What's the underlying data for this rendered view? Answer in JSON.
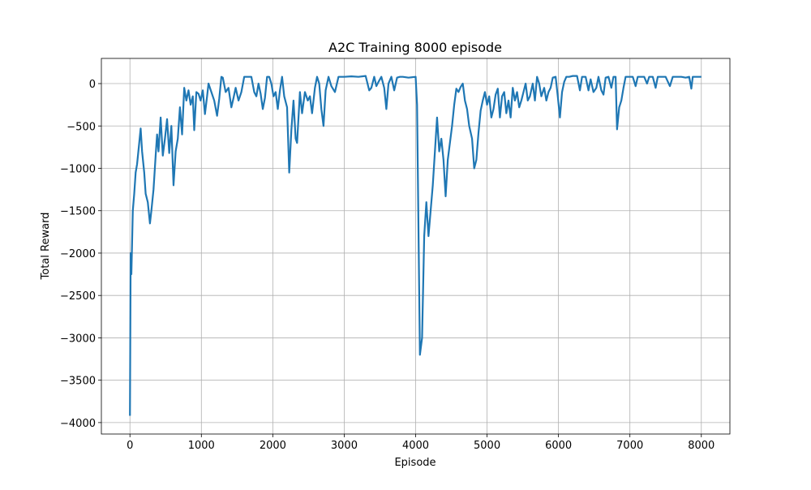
{
  "chart_data": {
    "type": "line",
    "title": "A2C Training 8000 episode",
    "x_label": "Episode",
    "y_label": "Total Reward",
    "x": [
      0,
      10,
      20,
      40,
      60,
      80,
      100,
      130,
      150,
      170,
      200,
      220,
      250,
      280,
      300,
      330,
      360,
      380,
      400,
      430,
      460,
      490,
      520,
      550,
      580,
      610,
      640,
      670,
      700,
      730,
      760,
      790,
      820,
      850,
      880,
      900,
      930,
      960,
      990,
      1020,
      1050,
      1080,
      1100,
      1140,
      1180,
      1220,
      1250,
      1280,
      1300,
      1340,
      1380,
      1420,
      1450,
      1480,
      1520,
      1560,
      1600,
      1640,
      1700,
      1740,
      1770,
      1800,
      1830,
      1860,
      1890,
      1920,
      1950,
      1980,
      2010,
      2040,
      2070,
      2100,
      2130,
      2160,
      2200,
      2230,
      2260,
      2290,
      2320,
      2340,
      2380,
      2410,
      2450,
      2490,
      2520,
      2550,
      2590,
      2620,
      2650,
      2680,
      2710,
      2740,
      2780,
      2820,
      2870,
      2920,
      3000,
      3100,
      3200,
      3300,
      3350,
      3380,
      3420,
      3450,
      3480,
      3520,
      3560,
      3590,
      3620,
      3660,
      3700,
      3740,
      3780,
      3820,
      3900,
      4000,
      4020,
      4060,
      4090,
      4120,
      4150,
      4180,
      4210,
      4240,
      4270,
      4300,
      4330,
      4360,
      4390,
      4420,
      4450,
      4480,
      4510,
      4540,
      4570,
      4600,
      4630,
      4660,
      4690,
      4720,
      4750,
      4790,
      4820,
      4850,
      4880,
      4910,
      4940,
      4970,
      5000,
      5030,
      5060,
      5090,
      5120,
      5150,
      5180,
      5210,
      5240,
      5270,
      5300,
      5330,
      5360,
      5390,
      5420,
      5450,
      5480,
      5510,
      5540,
      5570,
      5600,
      5640,
      5670,
      5700,
      5730,
      5760,
      5800,
      5830,
      5860,
      5890,
      5920,
      5960,
      5990,
      6020,
      6050,
      6080,
      6110,
      6150,
      6200,
      6260,
      6300,
      6330,
      6380,
      6420,
      6450,
      6490,
      6530,
      6560,
      6600,
      6630,
      6660,
      6700,
      6740,
      6770,
      6800,
      6820,
      6850,
      6880,
      6910,
      6940,
      6980,
      7040,
      7080,
      7110,
      7160,
      7200,
      7240,
      7270,
      7320,
      7360,
      7390,
      7450,
      7500,
      7560,
      7600,
      7660,
      7720,
      7780,
      7830,
      7860,
      7880,
      8000
    ],
    "values": [
      -3920,
      -2000,
      -2250,
      -1500,
      -1300,
      -1050,
      -950,
      -700,
      -530,
      -800,
      -1050,
      -1300,
      -1400,
      -1650,
      -1500,
      -1250,
      -850,
      -600,
      -800,
      -400,
      -850,
      -650,
      -420,
      -820,
      -500,
      -1200,
      -800,
      -650,
      -280,
      -600,
      -50,
      -200,
      -80,
      -250,
      -150,
      -550,
      -100,
      -120,
      -200,
      -80,
      -360,
      -150,
      0,
      -100,
      -200,
      -380,
      -180,
      80,
      70,
      -100,
      -50,
      -280,
      -170,
      -50,
      -200,
      -100,
      80,
      80,
      80,
      -100,
      -150,
      0,
      -120,
      -300,
      -170,
      80,
      80,
      0,
      -150,
      -100,
      -300,
      -80,
      80,
      -150,
      -280,
      -1050,
      -550,
      -200,
      -650,
      -700,
      -100,
      -350,
      -100,
      -200,
      -150,
      -350,
      -50,
      80,
      0,
      -300,
      -500,
      -80,
      80,
      -30,
      -100,
      80,
      80,
      85,
      80,
      90,
      -80,
      -50,
      80,
      -30,
      20,
      80,
      -50,
      -300,
      0,
      80,
      -80,
      70,
      80,
      80,
      70,
      80,
      -250,
      -3200,
      -3000,
      -1800,
      -1400,
      -1800,
      -1500,
      -1200,
      -800,
      -400,
      -800,
      -650,
      -900,
      -1330,
      -900,
      -700,
      -500,
      -250,
      -60,
      -100,
      -40,
      0,
      -200,
      -300,
      -500,
      -650,
      -1000,
      -900,
      -580,
      -320,
      -200,
      -100,
      -250,
      -150,
      -400,
      -300,
      -130,
      -60,
      -400,
      -150,
      -100,
      -350,
      -200,
      -400,
      -50,
      -200,
      -100,
      -280,
      -200,
      -100,
      0,
      -200,
      -150,
      0,
      -200,
      80,
      0,
      -150,
      -50,
      -200,
      -100,
      -50,
      70,
      80,
      -150,
      -400,
      -100,
      20,
      80,
      80,
      90,
      90,
      -80,
      80,
      80,
      -80,
      50,
      -100,
      -50,
      80,
      -80,
      -130,
      70,
      80,
      -50,
      80,
      80,
      -540,
      -280,
      -200,
      -50,
      80,
      80,
      80,
      -30,
      80,
      80,
      80,
      0,
      80,
      80,
      -50,
      80,
      80,
      80,
      -30,
      80,
      80,
      80,
      70,
      80,
      -60,
      80,
      80
    ],
    "color": "#1f77b4",
    "xlim": [
      -400,
      8400
    ],
    "ylim": [
      -4135,
      297
    ],
    "xticks": [
      0,
      1000,
      2000,
      3000,
      4000,
      5000,
      6000,
      7000,
      8000
    ],
    "yticks": [
      {
        "value": -4000,
        "label": "−4000"
      },
      {
        "value": -3500,
        "label": "−3500"
      },
      {
        "value": -3000,
        "label": "−3000"
      },
      {
        "value": -2500,
        "label": "−2500"
      },
      {
        "value": -2000,
        "label": "−2000"
      },
      {
        "value": -1500,
        "label": "−1500"
      },
      {
        "value": -1000,
        "label": "−1000"
      },
      {
        "value": -500,
        "label": "−500"
      },
      0
    ],
    "grid": true
  }
}
